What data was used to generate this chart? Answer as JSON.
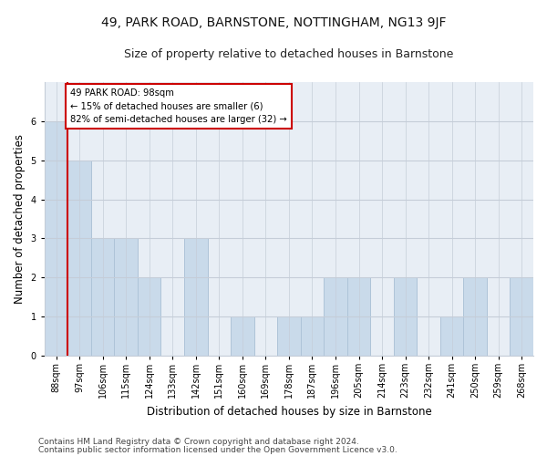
{
  "title": "49, PARK ROAD, BARNSTONE, NOTTINGHAM, NG13 9JF",
  "subtitle": "Size of property relative to detached houses in Barnstone",
  "xlabel": "Distribution of detached houses by size in Barnstone",
  "ylabel": "Number of detached properties",
  "footer_line1": "Contains HM Land Registry data © Crown copyright and database right 2024.",
  "footer_line2": "Contains public sector information licensed under the Open Government Licence v3.0.",
  "categories": [
    "88sqm",
    "97sqm",
    "106sqm",
    "115sqm",
    "124sqm",
    "133sqm",
    "142sqm",
    "151sqm",
    "160sqm",
    "169sqm",
    "178sqm",
    "187sqm",
    "196sqm",
    "205sqm",
    "214sqm",
    "223sqm",
    "232sqm",
    "241sqm",
    "250sqm",
    "259sqm",
    "268sqm"
  ],
  "values": [
    6,
    5,
    3,
    3,
    2,
    0,
    3,
    0,
    1,
    0,
    1,
    1,
    2,
    2,
    0,
    2,
    0,
    1,
    2,
    0,
    2
  ],
  "bar_color": "#c9daea",
  "bar_edge_color": "#aec4d8",
  "highlight_color": "#cc0000",
  "annotation_text": "49 PARK ROAD: 98sqm\n← 15% of detached houses are smaller (6)\n82% of semi-detached houses are larger (32) →",
  "annotation_box_color": "#cc0000",
  "ylim": [
    0,
    7
  ],
  "yticks": [
    0,
    1,
    2,
    3,
    4,
    5,
    6
  ],
  "background_color": "#ffffff",
  "plot_background": "#e8eef5",
  "grid_color": "#c5cdd8",
  "title_fontsize": 10,
  "subtitle_fontsize": 9,
  "axis_label_fontsize": 8.5,
  "tick_fontsize": 7,
  "footer_fontsize": 6.5
}
